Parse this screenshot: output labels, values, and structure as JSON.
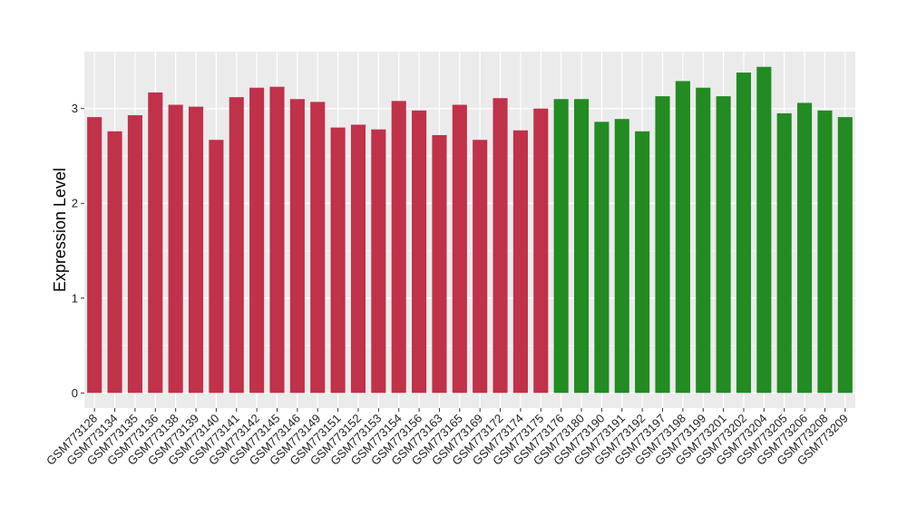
{
  "chart_data": {
    "type": "bar",
    "title": "",
    "xlabel": "",
    "ylabel": "Expression Level",
    "ylim": [
      -0.16,
      3.6
    ],
    "yticks": [
      0,
      1,
      2,
      3
    ],
    "grid": true,
    "legend": "none",
    "categories": [
      "GSM773128",
      "GSM773134",
      "GSM773135",
      "GSM773136",
      "GSM773138",
      "GSM773139",
      "GSM773140",
      "GSM773141",
      "GSM773142",
      "GSM773145",
      "GSM773146",
      "GSM773149",
      "GSM773151",
      "GSM773152",
      "GSM773153",
      "GSM773154",
      "GSM773156",
      "GSM773163",
      "GSM773165",
      "GSM773169",
      "GSM773172",
      "GSM773174",
      "GSM773175",
      "GSM773176",
      "GSM773180",
      "GSM773190",
      "GSM773191",
      "GSM773192",
      "GSM773197",
      "GSM773198",
      "GSM773199",
      "GSM773201",
      "GSM773202",
      "GSM773204",
      "GSM773205",
      "GSM773206",
      "GSM773208",
      "GSM773209"
    ],
    "values": [
      2.91,
      2.76,
      2.93,
      3.17,
      3.04,
      3.02,
      2.67,
      3.12,
      3.22,
      3.23,
      3.1,
      3.07,
      2.8,
      2.83,
      2.78,
      3.08,
      2.98,
      2.72,
      3.04,
      2.67,
      3.11,
      2.77,
      3.0,
      3.1,
      3.1,
      2.86,
      2.89,
      2.76,
      3.13,
      3.29,
      3.22,
      3.13,
      3.38,
      3.44,
      2.95,
      3.06,
      2.98,
      2.91
    ],
    "groups": [
      "red",
      "red",
      "red",
      "red",
      "red",
      "red",
      "red",
      "red",
      "red",
      "red",
      "red",
      "red",
      "red",
      "red",
      "red",
      "red",
      "red",
      "red",
      "red",
      "red",
      "red",
      "red",
      "red",
      "green",
      "green",
      "green",
      "green",
      "green",
      "green",
      "green",
      "green",
      "green",
      "green",
      "green",
      "green",
      "green",
      "green",
      "green"
    ],
    "colors": {
      "red": "#c0314a",
      "green": "#228b22",
      "panel": "#ebebeb",
      "grid": "#ffffff"
    }
  }
}
